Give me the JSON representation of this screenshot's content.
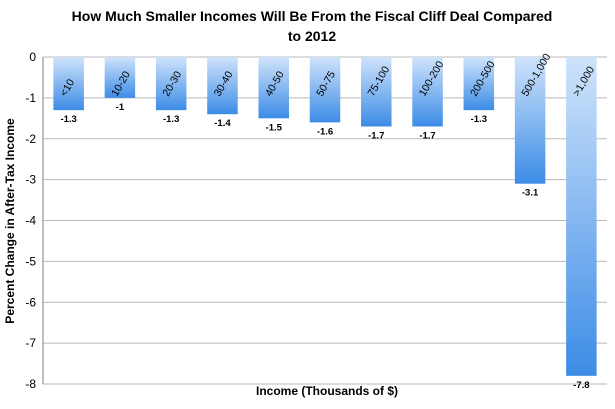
{
  "chart_data": {
    "type": "bar",
    "title_line1": "How Much Smaller Incomes Will Be From the Fiscal Cliff Deal Compared",
    "title_line2": "to 2012",
    "xlabel": "Income (Thousands of $)",
    "ylabel": "Percent Change in After-Tax Income",
    "ylim": [
      -8,
      0
    ],
    "yticks": [
      0,
      -1,
      -2,
      -3,
      -4,
      -5,
      -6,
      -7,
      -8
    ],
    "grid": true,
    "categories": [
      "<10",
      "10-20",
      "20-30",
      "30-40",
      "40-50",
      "50-75",
      "75-100",
      "100-200",
      "200-500",
      "500-1,000",
      ">1,000"
    ],
    "values": [
      -1.3,
      -1,
      -1.3,
      -1.4,
      -1.5,
      -1.6,
      -1.7,
      -1.7,
      -1.3,
      -3.1,
      -7.8
    ],
    "data_labels": [
      "-1.3",
      "-1",
      "-1.3",
      "-1.4",
      "-1.5",
      "-1.6",
      "-1.7",
      "-1.7",
      "-1.3",
      "-3.1",
      "-7.8"
    ],
    "bar_color_light": "#cfe3fb",
    "bar_color_dark": "#3c8ce6"
  }
}
